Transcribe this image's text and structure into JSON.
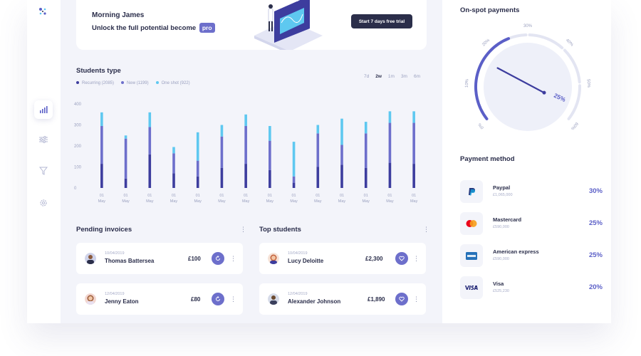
{
  "banner": {
    "greeting": "Morning James",
    "unlock_text": "Unlock the full potential become",
    "pro_label": "pro",
    "trial_button": "Start 7 days free trial"
  },
  "students": {
    "title": "Students type",
    "legend": [
      {
        "label": "Recurring (2085)",
        "color": "#3d3d9e"
      },
      {
        "label": "New (1199)",
        "color": "#6d6fcb"
      },
      {
        "label": "One shot (922)",
        "color": "#5ec8f0"
      }
    ],
    "ranges": [
      "7d",
      "2w",
      "1m",
      "3m",
      "6m"
    ],
    "selected_range": "2w"
  },
  "chart_data": {
    "type": "bar",
    "stacked": true,
    "y_ticks": [
      "400",
      "300",
      "200",
      "100",
      "0"
    ],
    "ylim": [
      0,
      400
    ],
    "categories": [
      "01 May",
      "01 May",
      "01 May",
      "01 May",
      "01 May",
      "01 May",
      "01 May",
      "01 May",
      "01 May",
      "01 May",
      "01 May",
      "01 May",
      "01 May",
      "01 May"
    ],
    "series": [
      {
        "name": "Recurring (2085)",
        "color": "#3d3d9e",
        "values": [
          115,
          45,
          160,
          70,
          55,
          95,
          115,
          85,
          25,
          100,
          110,
          95,
          120,
          115
        ]
      },
      {
        "name": "New (1199)",
        "color": "#6d6fcb",
        "values": [
          180,
          190,
          130,
          95,
          75,
          150,
          180,
          140,
          30,
          160,
          95,
          165,
          190,
          195
        ]
      },
      {
        "name": "One shot (922)",
        "color": "#5ec8f0",
        "values": [
          65,
          15,
          70,
          30,
          135,
          55,
          55,
          70,
          165,
          40,
          125,
          55,
          55,
          55
        ]
      }
    ]
  },
  "pending": {
    "title": "Pending invoices",
    "items": [
      {
        "date": "10/04/2019",
        "name": "Thomas Battersea",
        "amount": "£100"
      },
      {
        "date": "12/04/2019",
        "name": "Jenny Eaton",
        "amount": "£80"
      }
    ]
  },
  "top_students": {
    "title": "Top students",
    "items": [
      {
        "date": "10/04/2019",
        "name": "Lucy Deloitte",
        "amount": "£2,300"
      },
      {
        "date": "12/04/2019",
        "name": "Alexander Johnson",
        "amount": "£1,890"
      }
    ]
  },
  "onspot": {
    "title": "On-spot payments",
    "gauge_labels": [
      "0%",
      "10%",
      "20%",
      "30%",
      "40%",
      "50%",
      "60%"
    ],
    "value_label": "25%",
    "value": 25
  },
  "payment_method": {
    "title": "Payment method",
    "items": [
      {
        "name": "Paypal",
        "amount": "£1,065,000",
        "pct": "30%",
        "icon": "paypal-icon"
      },
      {
        "name": "Mastercard",
        "amount": "£590,000",
        "pct": "25%",
        "icon": "mastercard-icon"
      },
      {
        "name": "American express",
        "amount": "£590,000",
        "pct": "25%",
        "icon": "amex-icon"
      },
      {
        "name": "Visa",
        "amount": "£525,230",
        "pct": "20%",
        "icon": "visa-icon"
      }
    ]
  },
  "colors": {
    "accent": "#6d6fcb",
    "dark": "#2b2e4a",
    "sky": "#5ec8f0"
  }
}
